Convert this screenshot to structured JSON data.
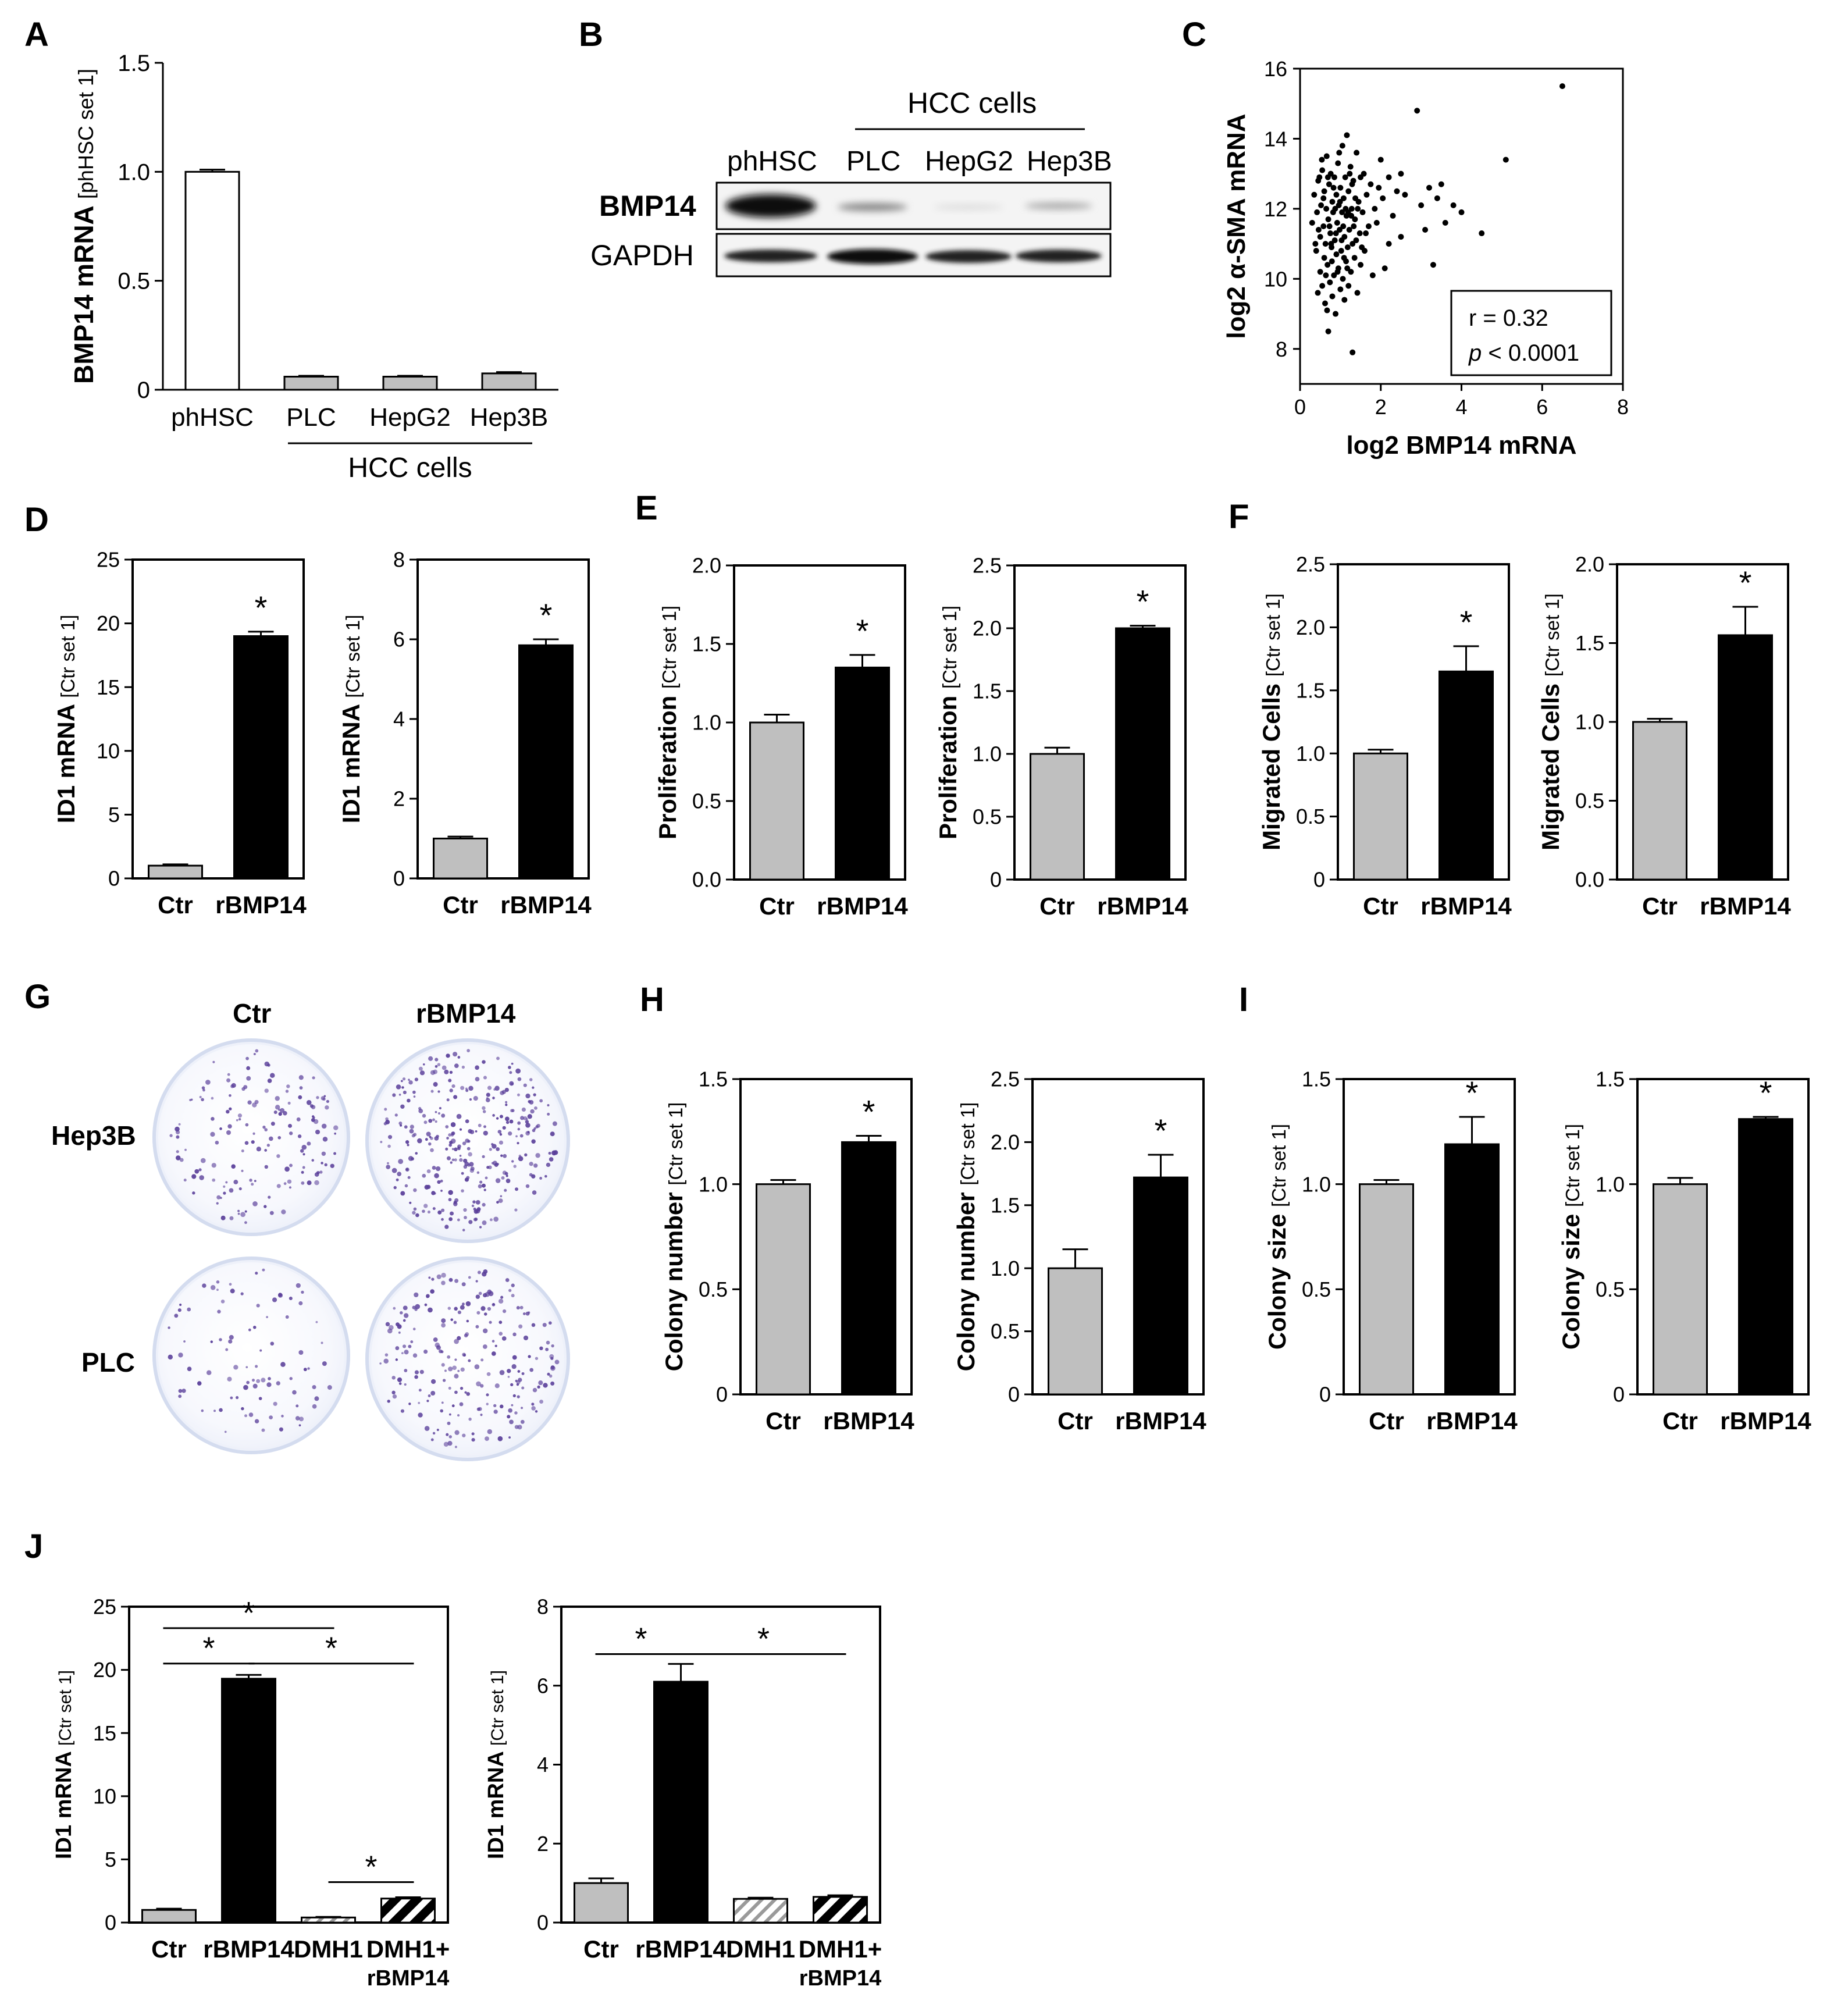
{
  "panel_labels": [
    "A",
    "B",
    "C",
    "D",
    "E",
    "F",
    "G",
    "H",
    "I",
    "J"
  ],
  "colors": {
    "ctr_bar": "#bfbfbf",
    "treat_bar": "#000000",
    "phhsc_bar": "#ffffff",
    "dot": "#000000",
    "colony": "#5a3f9a"
  },
  "chart_data": [
    {
      "id": "A",
      "type": "bar",
      "categories": [
        "phHSC",
        "PLC",
        "HepG2",
        "Hep3B"
      ],
      "values": [
        1.0,
        0.06,
        0.06,
        0.075
      ],
      "errors": [
        0.01,
        0.004,
        0.004,
        0.006
      ],
      "ylabel": "BMP14 mRNA",
      "ylabel_sub": "[phHSC set 1]",
      "ylim": [
        0,
        1.5
      ],
      "yticks": [
        "0",
        "0.5",
        "1.0",
        "1.5"
      ],
      "group_label": "HCC cells",
      "bar_colors": [
        "#ffffff",
        "#bfbfbf",
        "#bfbfbf",
        "#bfbfbf"
      ]
    },
    {
      "id": "C",
      "type": "scatter",
      "xlabel": "log2 BMP14 mRNA",
      "ylabel": "log2 α-SMA mRNA",
      "xlim": [
        0,
        8
      ],
      "ylim": [
        7,
        16
      ],
      "xticks": [
        "0",
        "2",
        "4",
        "6",
        "8"
      ],
      "yticks": [
        "8",
        "10",
        "12",
        "14",
        "16"
      ],
      "stats_line1": "r = 0.32",
      "stats_p": "p",
      "stats_rest": " < 0.0001",
      "points": [
        [
          0.3,
          11.6
        ],
        [
          0.35,
          12.4
        ],
        [
          0.4,
          10.8
        ],
        [
          0.42,
          11.9
        ],
        [
          0.45,
          12.8
        ],
        [
          0.5,
          10.2
        ],
        [
          0.5,
          11.2
        ],
        [
          0.52,
          12.1
        ],
        [
          0.55,
          9.8
        ],
        [
          0.55,
          13.1
        ],
        [
          0.58,
          11.5
        ],
        [
          0.6,
          10.6
        ],
        [
          0.6,
          12.5
        ],
        [
          0.62,
          9.3
        ],
        [
          0.63,
          11.0
        ],
        [
          0.65,
          12.0
        ],
        [
          0.66,
          13.5
        ],
        [
          0.68,
          10.4
        ],
        [
          0.7,
          11.7
        ],
        [
          0.7,
          8.5
        ],
        [
          0.72,
          12.7
        ],
        [
          0.74,
          9.9
        ],
        [
          0.75,
          11.3
        ],
        [
          0.76,
          13.0
        ],
        [
          0.78,
          10.9
        ],
        [
          0.8,
          12.2
        ],
        [
          0.8,
          9.5
        ],
        [
          0.82,
          11.9
        ],
        [
          0.84,
          10.1
        ],
        [
          0.85,
          12.9
        ],
        [
          0.86,
          11.1
        ],
        [
          0.88,
          9.0
        ],
        [
          0.9,
          12.4
        ],
        [
          0.9,
          10.7
        ],
        [
          0.92,
          11.6
        ],
        [
          0.94,
          13.3
        ],
        [
          0.95,
          10.3
        ],
        [
          0.96,
          12.1
        ],
        [
          0.98,
          11.4
        ],
        [
          1.0,
          9.7
        ],
        [
          1.0,
          12.6
        ],
        [
          1.02,
          10.8
        ],
        [
          1.04,
          11.9
        ],
        [
          1.05,
          13.8
        ],
        [
          1.06,
          10.0
        ],
        [
          1.08,
          12.3
        ],
        [
          1.1,
          11.2
        ],
        [
          1.1,
          9.4
        ],
        [
          1.12,
          12.9
        ],
        [
          1.14,
          10.5
        ],
        [
          1.15,
          11.8
        ],
        [
          1.16,
          14.1
        ],
        [
          1.18,
          10.9
        ],
        [
          1.2,
          12.5
        ],
        [
          1.2,
          9.8
        ],
        [
          1.22,
          11.4
        ],
        [
          1.25,
          13.2
        ],
        [
          1.26,
          10.2
        ],
        [
          1.28,
          12.0
        ],
        [
          1.3,
          11.0
        ],
        [
          1.3,
          7.9
        ],
        [
          1.32,
          12.8
        ],
        [
          1.35,
          10.6
        ],
        [
          1.36,
          11.7
        ],
        [
          1.4,
          13.6
        ],
        [
          1.42,
          9.6
        ],
        [
          1.45,
          12.2
        ],
        [
          1.48,
          11.3
        ],
        [
          1.5,
          10.4
        ],
        [
          1.5,
          12.9
        ],
        [
          1.55,
          11.9
        ],
        [
          1.58,
          13.0
        ],
        [
          1.6,
          10.8
        ],
        [
          1.65,
          12.4
        ],
        [
          1.7,
          11.5
        ],
        [
          1.75,
          12.7
        ],
        [
          1.8,
          10.1
        ],
        [
          1.85,
          12.0
        ],
        [
          1.9,
          11.6
        ],
        [
          2.0,
          13.4
        ],
        [
          2.05,
          12.3
        ],
        [
          2.1,
          10.3
        ],
        [
          2.2,
          12.9
        ],
        [
          2.3,
          11.8
        ],
        [
          2.4,
          12.5
        ],
        [
          2.5,
          11.2
        ],
        [
          2.5,
          13.0
        ],
        [
          2.9,
          14.8
        ],
        [
          3.0,
          12.1
        ],
        [
          3.1,
          11.4
        ],
        [
          3.2,
          12.6
        ],
        [
          3.3,
          10.4
        ],
        [
          3.4,
          12.3
        ],
        [
          3.5,
          12.7
        ],
        [
          3.6,
          11.6
        ],
        [
          3.8,
          12.1
        ],
        [
          4.0,
          11.9
        ],
        [
          4.5,
          11.3
        ],
        [
          5.1,
          13.4
        ],
        [
          6.5,
          15.5
        ],
        [
          0.38,
          11.0
        ],
        [
          0.48,
          12.9
        ],
        [
          0.58,
          12.3
        ],
        [
          0.64,
          10.1
        ],
        [
          0.73,
          11.5
        ],
        [
          0.83,
          12.6
        ],
        [
          0.93,
          10.2
        ],
        [
          1.03,
          11.1
        ],
        [
          1.13,
          12.0
        ],
        [
          1.23,
          13.0
        ],
        [
          1.33,
          11.5
        ],
        [
          1.43,
          12.0
        ],
        [
          1.53,
          10.9
        ],
        [
          1.63,
          11.3
        ],
        [
          0.44,
          9.6
        ],
        [
          0.54,
          13.4
        ],
        [
          0.67,
          9.1
        ],
        [
          0.77,
          11.0
        ],
        [
          0.87,
          12.0
        ],
        [
          0.97,
          13.6
        ],
        [
          1.07,
          11.5
        ],
        [
          1.17,
          10.3
        ],
        [
          1.27,
          11.8
        ],
        [
          1.37,
          12.3
        ],
        [
          2.2,
          11.0
        ],
        [
          2.6,
          12.4
        ],
        [
          1.95,
          12.6
        ],
        [
          0.46,
          11.4
        ],
        [
          0.69,
          12.9
        ],
        [
          0.79,
          10.5
        ],
        [
          0.89,
          11.3
        ],
        [
          0.99,
          12.2
        ],
        [
          1.09,
          10.6
        ],
        [
          1.19,
          11.9
        ],
        [
          1.29,
          12.7
        ],
        [
          1.39,
          11.1
        ]
      ]
    },
    {
      "id": "D1",
      "type": "bar",
      "categories": [
        "Ctr",
        "rBMP14"
      ],
      "values": [
        1,
        19
      ],
      "errors": [
        0.1,
        0.35
      ],
      "ylabel": "ID1 mRNA",
      "ylabel_sub": "[Ctr set 1]",
      "ylim": [
        0,
        25
      ],
      "yticks": [
        "0",
        "5",
        "10",
        "15",
        "20",
        "25"
      ],
      "sig": "*"
    },
    {
      "id": "D2",
      "type": "bar",
      "categories": [
        "Ctr",
        "rBMP14"
      ],
      "values": [
        1,
        5.85
      ],
      "errors": [
        0.05,
        0.15
      ],
      "ylabel": "ID1 mRNA",
      "ylabel_sub": "[Ctr set 1]",
      "ylim": [
        0,
        8
      ],
      "yticks": [
        "0",
        "2",
        "4",
        "6",
        "8"
      ],
      "sig": "*"
    },
    {
      "id": "E1",
      "type": "bar",
      "categories": [
        "Ctr",
        "rBMP14"
      ],
      "values": [
        1,
        1.35
      ],
      "errors": [
        0.05,
        0.08
      ],
      "ylabel": "Proliferation",
      "ylabel_sub": "[Ctr set 1]",
      "ylim": [
        0,
        2.0
      ],
      "yticks": [
        "0.0",
        "0.5",
        "1.0",
        "1.5",
        "2.0"
      ],
      "sig": "*"
    },
    {
      "id": "E2",
      "type": "bar",
      "categories": [
        "Ctr",
        "rBMP14"
      ],
      "values": [
        1,
        2.0
      ],
      "errors": [
        0.05,
        0.02
      ],
      "ylabel": "Proliferation",
      "ylabel_sub": "[Ctr set 1]",
      "ylim": [
        0,
        2.5
      ],
      "yticks": [
        "0",
        "0.5",
        "1.0",
        "1.5",
        "2.0",
        "2.5"
      ],
      "sig": "*"
    },
    {
      "id": "F1",
      "type": "bar",
      "categories": [
        "Ctr",
        "rBMP14"
      ],
      "values": [
        1,
        1.65
      ],
      "errors": [
        0.03,
        0.2
      ],
      "ylabel": "Migrated Cells",
      "ylabel_sub": "[Ctr set 1]",
      "ylim": [
        0,
        2.5
      ],
      "yticks": [
        "0",
        "0.5",
        "1.0",
        "1.5",
        "2.0",
        "2.5"
      ],
      "sig": "*"
    },
    {
      "id": "F2",
      "type": "bar",
      "categories": [
        "Ctr",
        "rBMP14"
      ],
      "values": [
        1,
        1.55
      ],
      "errors": [
        0.02,
        0.18
      ],
      "ylabel": "Migrated Cells",
      "ylabel_sub": "[Ctr set 1]",
      "ylim": [
        0,
        2.0
      ],
      "yticks": [
        "0.0",
        "0.5",
        "1.0",
        "1.5",
        "2.0"
      ],
      "sig": "*"
    },
    {
      "id": "H1",
      "type": "bar",
      "categories": [
        "Ctr",
        "rBMP14"
      ],
      "values": [
        1,
        1.2
      ],
      "errors": [
        0.02,
        0.03
      ],
      "ylabel": "Colony number",
      "ylabel_sub": "[Ctr set 1]",
      "ylim": [
        0,
        1.5
      ],
      "yticks": [
        "0",
        "0.5",
        "1.0",
        "1.5"
      ],
      "sig": "*"
    },
    {
      "id": "H2",
      "type": "bar",
      "categories": [
        "Ctr",
        "rBMP14"
      ],
      "values": [
        1,
        1.72
      ],
      "errors": [
        0.15,
        0.18
      ],
      "ylabel": "Colony number",
      "ylabel_sub": "[Ctr set 1]",
      "ylim": [
        0,
        2.5
      ],
      "yticks": [
        "0",
        "0.5",
        "1.0",
        "1.5",
        "2.0",
        "2.5"
      ],
      "sig": "*"
    },
    {
      "id": "I1",
      "type": "bar",
      "categories": [
        "Ctr",
        "rBMP14"
      ],
      "values": [
        1,
        1.19
      ],
      "errors": [
        0.02,
        0.13
      ],
      "ylabel": "Colony size",
      "ylabel_sub": "[Ctr set 1]",
      "ylim": [
        0,
        1.5
      ],
      "yticks": [
        "0",
        "0.5",
        "1.0",
        "1.5"
      ],
      "sig": "*"
    },
    {
      "id": "I2",
      "type": "bar",
      "categories": [
        "Ctr",
        "rBMP14"
      ],
      "values": [
        1,
        1.31
      ],
      "errors": [
        0.03,
        0.01
      ],
      "ylabel": "Colony size",
      "ylabel_sub": "[Ctr set 1]",
      "ylim": [
        0,
        1.5
      ],
      "yticks": [
        "0",
        "0.5",
        "1.0",
        "1.5"
      ],
      "sig": "*"
    },
    {
      "id": "J1",
      "type": "bar",
      "categories": [
        "Ctr",
        "rBMP14",
        "DMH1",
        "DMH1+"
      ],
      "category_line2": [
        "",
        "",
        "",
        "rBMP14"
      ],
      "values": [
        1,
        19.3,
        0.4,
        1.9
      ],
      "errors": [
        0.1,
        0.3,
        0.05,
        0.1
      ],
      "ylabel": "ID1 mRNA",
      "ylabel_sub": "[Ctr set 1]",
      "ylim": [
        0,
        25
      ],
      "yticks": [
        "0",
        "5",
        "10",
        "15",
        "20",
        "25"
      ],
      "brackets": [
        {
          "from": 0,
          "to": 2,
          "level": 23.3
        },
        {
          "from": 0,
          "to": 1,
          "level": 20.5
        },
        {
          "from": 1,
          "to": 3,
          "level": 20.5
        },
        {
          "from": 2,
          "to": 3,
          "level": 3.2
        }
      ],
      "sig": "*"
    },
    {
      "id": "J2",
      "type": "bar",
      "categories": [
        "Ctr",
        "rBMP14",
        "DMH1",
        "DMH1+"
      ],
      "category_line2": [
        "",
        "",
        "",
        "rBMP14"
      ],
      "values": [
        1,
        6.1,
        0.6,
        0.65
      ],
      "errors": [
        0.12,
        0.45,
        0.03,
        0.04
      ],
      "ylabel": "ID1 mRNA",
      "ylabel_sub": "[Ctr set 1]",
      "ylim": [
        0,
        8
      ],
      "yticks": [
        "0",
        "2",
        "4",
        "6",
        "8"
      ],
      "brackets": [
        {
          "from": 0,
          "to": 1,
          "level": 6.8
        },
        {
          "from": 1,
          "to": 3,
          "level": 6.8
        }
      ],
      "sig": "*"
    }
  ],
  "blot": {
    "group_label": "HCC cells",
    "lanes": [
      "phHSC",
      "PLC",
      "HepG2",
      "Hep3B"
    ],
    "rows": [
      "BMP14",
      "GAPDH"
    ]
  },
  "colony": {
    "col_labels": [
      "Ctr",
      "rBMP14"
    ],
    "row_labels": [
      "Hep3B",
      "PLC"
    ]
  }
}
